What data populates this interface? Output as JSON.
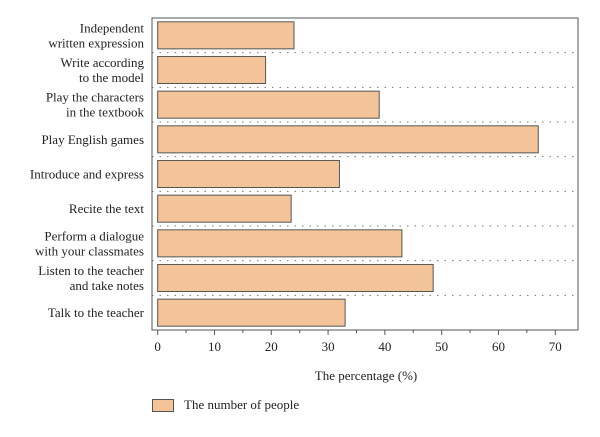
{
  "chart_data": {
    "type": "bar",
    "orientation": "horizontal",
    "categories": [
      "Independent\nwritten expression",
      "Write according\nto the model",
      "Play the characters\nin the textbook",
      "Play English games",
      "Introduce and express",
      "Recite the text",
      "Perform a dialogue\nwith your classmates",
      "Listen to the teacher\nand take notes",
      "Talk to the teacher"
    ],
    "series": [
      {
        "name": "The number of people",
        "values": [
          24,
          19,
          39,
          67,
          32,
          23.5,
          43,
          48.5,
          33
        ],
        "color": "#f2c498"
      }
    ],
    "xlabel": "The percentage (%)",
    "ylabel": "",
    "xlim": [
      -1,
      74
    ],
    "xticks": [
      0,
      10,
      20,
      30,
      40,
      50,
      60,
      70
    ],
    "grid": "dotted separators between categories",
    "legend_position": "bottom-left"
  }
}
